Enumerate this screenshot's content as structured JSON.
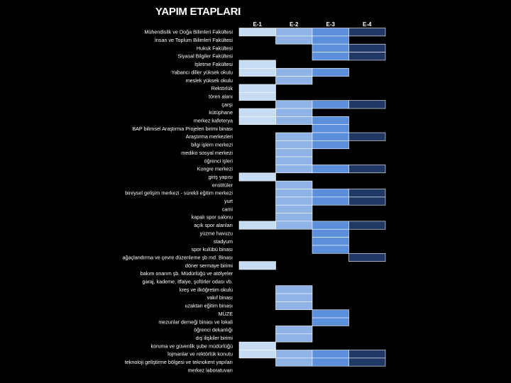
{
  "chart_data": {
    "type": "table",
    "title": "YAPIM ETAPLARI",
    "columns": [
      "E-1",
      "E-2",
      "E-3",
      "E-4"
    ],
    "rows": [
      {
        "label": "Mühendislik ve Doğa Bilimleri Fakültesi",
        "cells": [
          1,
          1,
          1,
          1
        ]
      },
      {
        "label": "İnsan ve Toplum Bilimleri Fakültesi",
        "cells": [
          0,
          1,
          1,
          0
        ]
      },
      {
        "label": "Hukuk Fakültesi",
        "cells": [
          0,
          0,
          1,
          1
        ]
      },
      {
        "label": "Siyasal Bilgiler Fakültesi",
        "cells": [
          0,
          0,
          1,
          1
        ]
      },
      {
        "label": "İşletme Fakültesi",
        "cells": [
          1,
          0,
          0,
          0
        ]
      },
      {
        "label": "Yabancı diller yüksek okulu",
        "cells": [
          1,
          1,
          1,
          0
        ]
      },
      {
        "label": "meslek yüksek okulu",
        "cells": [
          0,
          1,
          0,
          0
        ]
      },
      {
        "label": "Rektörlük",
        "cells": [
          1,
          0,
          0,
          0
        ]
      },
      {
        "label": "tören alanı",
        "cells": [
          1,
          0,
          0,
          0
        ]
      },
      {
        "label": "çarşı",
        "cells": [
          0,
          1,
          1,
          1
        ]
      },
      {
        "label": "kütüphane",
        "cells": [
          1,
          1,
          0,
          0
        ]
      },
      {
        "label": "merkez kafeterya",
        "cells": [
          1,
          1,
          1,
          0
        ]
      },
      {
        "label": "BAP bilimsel Araştırma Projeleri birimi binası",
        "cells": [
          0,
          0,
          1,
          0
        ]
      },
      {
        "label": "Araştırma merkezleri",
        "cells": [
          0,
          1,
          1,
          1
        ]
      },
      {
        "label": "bilgi işlem merkezi",
        "cells": [
          0,
          1,
          1,
          0
        ]
      },
      {
        "label": "mediko sosyal merkezi",
        "cells": [
          0,
          1,
          0,
          0
        ]
      },
      {
        "label": "öğrenci işleri",
        "cells": [
          0,
          1,
          0,
          0
        ]
      },
      {
        "label": "Kongre merkezi",
        "cells": [
          0,
          1,
          1,
          1
        ]
      },
      {
        "label": "giriş yapısı",
        "cells": [
          1,
          0,
          0,
          0
        ]
      },
      {
        "label": "enstitüler",
        "cells": [
          0,
          1,
          0,
          0
        ]
      },
      {
        "label": "bireysel gelişim merkezi - sürekli eğitim merkezi",
        "cells": [
          0,
          1,
          1,
          1
        ]
      },
      {
        "label": "yurt",
        "cells": [
          0,
          1,
          1,
          1
        ]
      },
      {
        "label": "cami",
        "cells": [
          0,
          1,
          0,
          0
        ]
      },
      {
        "label": "kapalı spor salonu",
        "cells": [
          0,
          1,
          0,
          0
        ]
      },
      {
        "label": "açık spor alanları",
        "cells": [
          1,
          1,
          1,
          1
        ]
      },
      {
        "label": "yüzme havuzu",
        "cells": [
          0,
          0,
          1,
          0
        ]
      },
      {
        "label": "stadyum",
        "cells": [
          0,
          0,
          1,
          0
        ]
      },
      {
        "label": "spor kulübü binası",
        "cells": [
          0,
          0,
          1,
          0
        ]
      },
      {
        "label": "ağaçlandırma ve çevre düzenleme şb md. Binası",
        "cells": [
          0,
          0,
          0,
          1
        ]
      },
      {
        "label": "döner sermaye birimi",
        "cells": [
          1,
          0,
          0,
          0
        ]
      },
      {
        "label": "bakım onarım şb. Müdürlüğü ve atölyeler",
        "cells": [
          0,
          0,
          0,
          0
        ]
      },
      {
        "label": "garaj, kademe, itfaiye, şoförler odası vb.",
        "cells": [
          0,
          0,
          0,
          0
        ]
      },
      {
        "label": "kreş ve ilköğretim okulu",
        "cells": [
          0,
          1,
          0,
          0
        ]
      },
      {
        "label": "vakıf binası",
        "cells": [
          0,
          1,
          0,
          0
        ]
      },
      {
        "label": "uzaktan eğitim binası",
        "cells": [
          0,
          1,
          0,
          0
        ]
      },
      {
        "label": "MÜZE",
        "cells": [
          0,
          0,
          1,
          0
        ]
      },
      {
        "label": "mezunlar derneği binası ve lokali",
        "cells": [
          0,
          0,
          1,
          0
        ]
      },
      {
        "label": "öğrenci dekanlığı",
        "cells": [
          0,
          1,
          0,
          0
        ]
      },
      {
        "label": "dış ilişkiler birimi",
        "cells": [
          0,
          1,
          0,
          0
        ]
      },
      {
        "label": "koruma ve güvenlik şube müdürlüğü",
        "cells": [
          1,
          0,
          0,
          0
        ]
      },
      {
        "label": "lojmanlar ve rektörlük konutu",
        "cells": [
          1,
          1,
          1,
          1
        ]
      },
      {
        "label": "teknoloji geliştirme bölgesi ve teknokent yapıları",
        "cells": [
          0,
          1,
          1,
          1
        ]
      },
      {
        "label": "merkez laboratuvarı",
        "cells": [
          0,
          0,
          0,
          0
        ]
      }
    ],
    "colors": {
      "background": "#000000",
      "text": "#ffffff",
      "E-1": "#c6dcf2",
      "E-2": "#8fb3e6",
      "E-3": "#5b8fdc",
      "E-4": "#1f3864",
      "border": "#ffffff"
    }
  }
}
